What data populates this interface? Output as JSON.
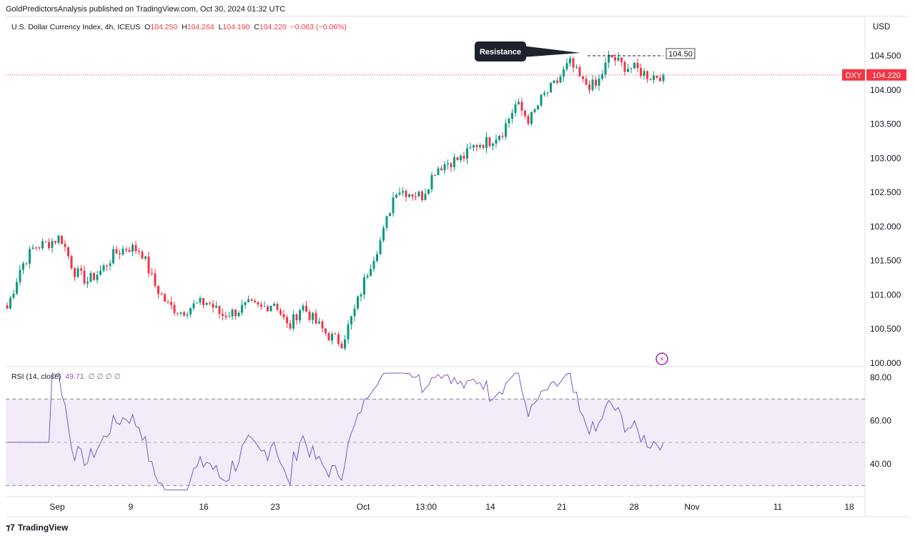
{
  "publisher_line": "GoldPredictorsAnalysis published on TradingView.com, Oct 30, 2024 01:32 UTC",
  "footer_brand": "TradingView",
  "currency_label": "USD",
  "legend": {
    "symbol": "U.S. Dollar Currency Index, 4h, ICEUS",
    "open_label": "O",
    "open": "104.250",
    "high_label": "H",
    "high": "104.264",
    "low_label": "L",
    "low": "104.190",
    "close_label": "C",
    "close": "104.220",
    "change": "−0.063 (−0.06%)"
  },
  "rsi_legend": {
    "label": "RSI (14, close)",
    "value": "49.71",
    "extra": "∅ ∅ ∅ ∅"
  },
  "annotation": {
    "callout": "Resistance",
    "level_label": "104.50"
  },
  "price_tag": {
    "symbol": "DXY",
    "value": "104.220"
  },
  "colors": {
    "up": "#089981",
    "down": "#f23645",
    "rsi": "#7e57c2",
    "rsi_band": "#ede7f6",
    "annotation_bg": "#1e222d",
    "price_line": "#f23645"
  },
  "chart_data": {
    "type": "candlestick",
    "interval": "4h",
    "y_ticks": [
      "100.000",
      "100.500",
      "101.000",
      "101.500",
      "102.000",
      "102.500",
      "103.000",
      "103.500",
      "104.000",
      "104.500"
    ],
    "y_range": [
      100.0,
      104.7
    ],
    "x_tick_labels": [
      "Sep",
      "9",
      "16",
      "23",
      "Oct",
      "13:00",
      "14",
      "21",
      "28",
      "Nov",
      "11",
      "18"
    ],
    "resistance": 104.5,
    "last_price": 104.22,
    "close_path": [
      [
        "Aug 30",
        100.8
      ],
      [
        "Sep 2",
        101.4
      ],
      [
        "Sep 3",
        101.7
      ],
      [
        "Sep 4",
        101.75
      ],
      [
        "Sep 5",
        101.85
      ],
      [
        "Sep 6",
        101.35
      ],
      [
        "Sep 8",
        101.2
      ],
      [
        "Sep 9",
        101.35
      ],
      [
        "Sep 10",
        101.6
      ],
      [
        "Sep 11",
        101.7
      ],
      [
        "Sep 12",
        101.65
      ],
      [
        "Sep 13",
        101.15
      ],
      [
        "Sep 15",
        100.85
      ],
      [
        "Sep 16",
        100.75
      ],
      [
        "Sep 17",
        100.85
      ],
      [
        "Sep 18",
        100.9
      ],
      [
        "Sep 19",
        100.7
      ],
      [
        "Sep 20",
        100.75
      ],
      [
        "Sep 22",
        100.85
      ],
      [
        "Sep 23",
        100.8
      ],
      [
        "Sep 24",
        100.9
      ],
      [
        "Sep 25",
        100.5
      ],
      [
        "Sep 26",
        100.85
      ],
      [
        "Sep 27",
        100.6
      ],
      [
        "Sep 29",
        100.4
      ],
      [
        "Sep 30",
        100.3
      ],
      [
        "Oct 1",
        100.8
      ],
      [
        "Oct 2",
        101.4
      ],
      [
        "Oct 3",
        101.85
      ],
      [
        "Oct 4",
        102.55
      ],
      [
        "Oct 6",
        102.5
      ],
      [
        "Oct 7",
        102.45
      ],
      [
        "Oct 8",
        102.85
      ],
      [
        "Oct 9",
        102.95
      ],
      [
        "Oct 10",
        103.0
      ],
      [
        "Oct 11",
        103.2
      ],
      [
        "Oct 13",
        103.25
      ],
      [
        "Oct 14",
        103.4
      ],
      [
        "Oct 15",
        103.8
      ],
      [
        "Oct 16",
        103.55
      ],
      [
        "Oct 17",
        103.9
      ],
      [
        "Oct 18",
        104.1
      ],
      [
        "Oct 20",
        104.4
      ],
      [
        "Oct 21",
        104.1
      ],
      [
        "Oct 22",
        104.05
      ],
      [
        "Oct 23",
        104.5
      ],
      [
        "Oct 24",
        104.35
      ],
      [
        "Oct 25",
        104.3
      ],
      [
        "Oct 27",
        104.2
      ],
      [
        "Oct 28",
        104.22
      ]
    ],
    "rsi": {
      "levels": [
        30,
        50,
        70
      ],
      "y_ticks": [
        "80.00",
        "60.00",
        "40.00"
      ],
      "range": [
        26,
        86
      ],
      "current": 49.71
    }
  }
}
